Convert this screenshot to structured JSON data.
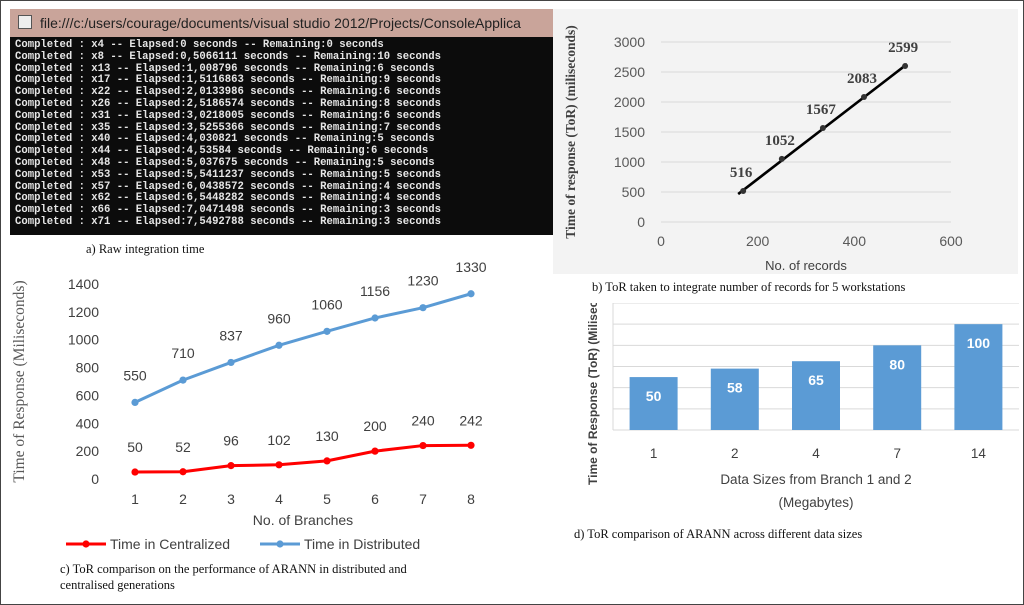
{
  "console": {
    "title": "file:///c:/users/courage/documents/visual studio 2012/Projects/ConsoleApplica",
    "lines": [
      "Completed : x4 -- Elapsed:0 seconds -- Remaining:0 seconds",
      "Completed : x8 -- Elapsed:0,5066111 seconds -- Remaining:10 seconds",
      "Completed : x13 -- Elapsed:1,008796 seconds -- Remaining:6 seconds",
      "Completed : x17 -- Elapsed:1,5116863 seconds -- Remaining:9 seconds",
      "Completed : x22 -- Elapsed:2,0133986 seconds -- Remaining:6 seconds",
      "Completed : x26 -- Elapsed:2,5186574 seconds -- Remaining:8 seconds",
      "Completed : x31 -- Elapsed:3,0218005 seconds -- Remaining:6 seconds",
      "Completed : x35 -- Elapsed:3,5255366 seconds -- Remaining:7 seconds",
      "Completed : x40 -- Elapsed:4,030821 seconds -- Remaining:5 seconds",
      "Completed : x44 -- Elapsed:4,53584 seconds -- Remaining:6 seconds",
      "Completed : x48 -- Elapsed:5,037675 seconds -- Remaining:5 seconds",
      "Completed : x53 -- Elapsed:5,5411237 seconds -- Remaining:5 seconds",
      "Completed : x57 -- Elapsed:6,0438572 seconds -- Remaining:4 seconds",
      "Completed : x62 -- Elapsed:6,5448282 seconds -- Remaining:4 seconds",
      "Completed : x66 -- Elapsed:7,0471498 seconds -- Remaining:3 seconds",
      "Completed : x71 -- Elapsed:7,5492788 seconds -- Remaining:3 seconds"
    ],
    "caption": "a) Raw integration time"
  },
  "chart_data": [
    {
      "id": "b",
      "type": "scatter",
      "caption": "b) ToR taken to integrate number of records for 5 workstations",
      "xlabel": "No. of records",
      "ylabel": "Time of response (ToR) (miliseconds)",
      "xlim": [
        0,
        600
      ],
      "ylim": [
        0,
        3000
      ],
      "xticks": [
        "0",
        "200",
        "400",
        "600"
      ],
      "yticks": [
        "0",
        "500",
        "1000",
        "1500",
        "2000",
        "2500",
        "3000"
      ],
      "x": [
        170,
        250,
        335,
        420,
        505
      ],
      "y": [
        516,
        1052,
        1567,
        2083,
        2599
      ],
      "labels": [
        "516",
        "1052",
        "1567",
        "2083",
        "2599"
      ],
      "trendline": true
    },
    {
      "id": "c",
      "type": "line",
      "caption_line1": "c) ToR comparison on the performance of ARANN in distributed and",
      "caption_line2": "centralised generations",
      "xlabel": "No. of Branches",
      "ylabel": "Time of Response (Miliseconds)",
      "categories": [
        "1",
        "2",
        "3",
        "4",
        "5",
        "6",
        "7",
        "8"
      ],
      "ylim": [
        0,
        1400
      ],
      "yticks": [
        "0",
        "200",
        "400",
        "600",
        "800",
        "1000",
        "1200",
        "1400"
      ],
      "series": [
        {
          "name": "Time in Centralized",
          "color": "#ff0000",
          "values": [
            50,
            52,
            96,
            102,
            130,
            200,
            240,
            242
          ]
        },
        {
          "name": "Time in Distributed",
          "color": "#5b9bd5",
          "values": [
            550,
            710,
            837,
            960,
            1060,
            1156,
            1230,
            1330
          ]
        }
      ]
    },
    {
      "id": "d",
      "type": "bar",
      "caption": "d) ToR comparison of ARANN across different data sizes",
      "xlabel_line1": "Data Sizes from Branch 1 and 2",
      "xlabel_line2": "(Megabytes)",
      "ylabel": "Time of Response (ToR) (Miliseconds)",
      "categories": [
        "1",
        "2",
        "4",
        "7",
        "14"
      ],
      "values": [
        50,
        58,
        65,
        80,
        100
      ],
      "ylim": [
        0,
        120
      ],
      "color": "#5b9bd5"
    }
  ]
}
